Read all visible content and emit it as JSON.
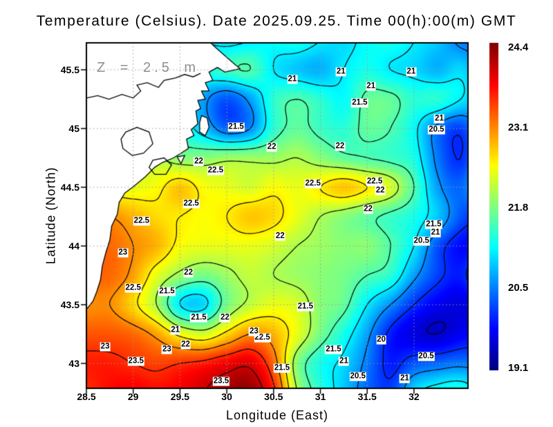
{
  "title": "Temperature (Celsius). Date 2025.09.25. Time 00(h):00(m) GMT",
  "annotation": "Z = 2.5 m",
  "axes": {
    "xlabel": "Longitude (East)",
    "ylabel": "Latitude (North)",
    "x_ticks": [
      {
        "label": "28.5",
        "value": 28.5
      },
      {
        "label": "29",
        "value": 29
      },
      {
        "label": "29.5",
        "value": 29.5
      },
      {
        "label": "30",
        "value": 30
      },
      {
        "label": "30.5",
        "value": 30.5
      },
      {
        "label": "31",
        "value": 31
      },
      {
        "label": "31.5",
        "value": 31.5
      },
      {
        "label": "32",
        "value": 32
      }
    ],
    "y_ticks": [
      {
        "label": "43",
        "value": 43
      },
      {
        "label": "43.5",
        "value": 43.5
      },
      {
        "label": "44",
        "value": 44
      },
      {
        "label": "44.5",
        "value": 44.5
      },
      {
        "label": "45",
        "value": 45
      },
      {
        "label": "45.5",
        "value": 45.5
      }
    ]
  },
  "colorbar": {
    "colormap": "jet",
    "min": 19.1,
    "max": 24.4,
    "tick_labels": [
      "24.4",
      "23.1",
      "21.8",
      "20.5",
      "19.1"
    ]
  },
  "chart_data": {
    "type": "heatmap",
    "title": "Temperature (Celsius). Date 2025.09.25. Time 00(h):00(m) GMT",
    "xlabel": "Longitude (East)",
    "ylabel": "Latitude (North)",
    "xlim": [
      28.5,
      32.58
    ],
    "ylim": [
      42.79,
      45.73
    ],
    "depth_label": "Z = 2.5 m",
    "colormap": "jet",
    "value_range": [
      19.1,
      24.4
    ],
    "contour_interval": 0.5,
    "contour_levels": [
      19.5,
      20,
      20.5,
      21,
      21.5,
      22,
      22.5,
      23,
      23.5,
      24
    ],
    "grid": {
      "lon_start": 28.5,
      "lon_step": 0.25,
      "lat_start": 45.75,
      "lat_step": -0.25,
      "temperature_c": [
        [
          21.0,
          21.0,
          21.0,
          21.0,
          21.0,
          21.0,
          20.9,
          21.0,
          21.1,
          21.2,
          21.0,
          20.9,
          21.1,
          21.2,
          21.0,
          20.8,
          20.4,
          20.3
        ],
        [
          21.0,
          21.0,
          21.0,
          21.0,
          21.0,
          21.2,
          21.4,
          21.5,
          21.0,
          20.8,
          20.7,
          21.0,
          21.2,
          21.0,
          20.9,
          20.7,
          20.9,
          20.5
        ],
        [
          21.0,
          21.0,
          21.0,
          21.0,
          21.0,
          20.6,
          20.2,
          20.6,
          21.3,
          21.5,
          21.3,
          21.1,
          21.6,
          21.6,
          21.3,
          21.3,
          21.0,
          20.7
        ],
        [
          21.0,
          21.0,
          21.0,
          21.0,
          21.2,
          20.8,
          20.3,
          20.5,
          21.3,
          21.6,
          21.4,
          21.3,
          21.6,
          21.5,
          21.1,
          20.4,
          20.1,
          20.8
        ],
        [
          22.0,
          22.0,
          22.0,
          22.0,
          21.8,
          21.8,
          21.9,
          21.9,
          21.9,
          22.0,
          21.8,
          21.6,
          21.5,
          21.4,
          21.2,
          20.4,
          20.0,
          20.8
        ],
        [
          22.3,
          22.3,
          22.3,
          22.4,
          22.7,
          22.4,
          22.3,
          22.2,
          22.4,
          22.3,
          22.5,
          22.7,
          22.5,
          22.2,
          21.5,
          20.6,
          20.3,
          21.0
        ],
        [
          23.0,
          23.0,
          22.8,
          22.6,
          22.5,
          22.4,
          22.5,
          22.7,
          22.6,
          22.3,
          22.0,
          21.8,
          21.6,
          21.4,
          21.2,
          20.8,
          20.2,
          20.0
        ],
        [
          23.2,
          23.2,
          23.0,
          22.8,
          22.4,
          22.3,
          22.3,
          22.3,
          22.2,
          22.0,
          21.9,
          21.8,
          21.8,
          21.5,
          21.0,
          20.2,
          19.8,
          19.9
        ],
        [
          23.2,
          23.2,
          22.9,
          22.3,
          21.9,
          21.7,
          21.9,
          22.1,
          22.0,
          21.9,
          21.8,
          21.7,
          21.5,
          21.3,
          20.6,
          20.1,
          19.9,
          20.5
        ],
        [
          23.0,
          23.0,
          22.6,
          22.0,
          21.0,
          20.9,
          21.7,
          22.1,
          22.3,
          22.2,
          21.8,
          21.6,
          21.0,
          20.5,
          20.0,
          19.7,
          19.6,
          19.9
        ],
        [
          23.3,
          23.3,
          23.2,
          22.9,
          22.4,
          22.2,
          22.6,
          23.0,
          22.8,
          22.3,
          21.7,
          21.2,
          20.6,
          19.9,
          19.6,
          19.5,
          19.7,
          19.9
        ],
        [
          23.6,
          23.6,
          23.5,
          23.4,
          23.5,
          23.6,
          23.8,
          23.9,
          23.2,
          21.8,
          21.2,
          20.9,
          20.4,
          19.9,
          20.2,
          20.3,
          20.4,
          20.3
        ],
        [
          23.5,
          23.7,
          23.8,
          23.7,
          23.8,
          24.0,
          24.2,
          24.3,
          23.6,
          22.0,
          21.3,
          20.8,
          20.3,
          20.1,
          20.9,
          21.2,
          21.3,
          20.9
        ]
      ]
    },
    "contour_labels": [
      {
        "v": "21",
        "lon": 30.7,
        "lat": 45.42
      },
      {
        "v": "21",
        "lon": 31.22,
        "lat": 45.48
      },
      {
        "v": "21",
        "lon": 31.97,
        "lat": 45.48
      },
      {
        "v": "21",
        "lon": 31.54,
        "lat": 45.36
      },
      {
        "v": "21.5",
        "lon": 31.42,
        "lat": 45.22
      },
      {
        "v": "21.5",
        "lon": 30.1,
        "lat": 45.01
      },
      {
        "v": "21",
        "lon": 32.27,
        "lat": 45.08
      },
      {
        "v": "20.5",
        "lon": 32.24,
        "lat": 44.99
      },
      {
        "v": "22",
        "lon": 29.7,
        "lat": 44.72
      },
      {
        "v": "22.5",
        "lon": 29.88,
        "lat": 44.64
      },
      {
        "v": "22",
        "lon": 30.48,
        "lat": 44.84
      },
      {
        "v": "22",
        "lon": 31.21,
        "lat": 44.85
      },
      {
        "v": "22.5",
        "lon": 30.92,
        "lat": 44.53
      },
      {
        "v": "22.5",
        "lon": 31.58,
        "lat": 44.55
      },
      {
        "v": "22",
        "lon": 31.64,
        "lat": 44.47
      },
      {
        "v": "22",
        "lon": 31.51,
        "lat": 44.31
      },
      {
        "v": "22.5",
        "lon": 29.62,
        "lat": 44.36
      },
      {
        "v": "22.5",
        "lon": 29.09,
        "lat": 44.21
      },
      {
        "v": "23",
        "lon": 28.89,
        "lat": 43.94
      },
      {
        "v": "22",
        "lon": 29.59,
        "lat": 43.77
      },
      {
        "v": "22",
        "lon": 30.57,
        "lat": 44.08
      },
      {
        "v": "22.5",
        "lon": 29.0,
        "lat": 43.64
      },
      {
        "v": "21.5",
        "lon": 29.36,
        "lat": 43.61
      },
      {
        "v": "21.5",
        "lon": 29.7,
        "lat": 43.39
      },
      {
        "v": "22",
        "lon": 29.98,
        "lat": 43.39
      },
      {
        "v": "21",
        "lon": 29.45,
        "lat": 43.28
      },
      {
        "v": "22.5",
        "lon": 30.38,
        "lat": 43.22
      },
      {
        "v": "23",
        "lon": 30.29,
        "lat": 43.27
      },
      {
        "v": "23",
        "lon": 28.7,
        "lat": 43.14
      },
      {
        "v": "23.5",
        "lon": 29.03,
        "lat": 43.02
      },
      {
        "v": "23",
        "lon": 29.36,
        "lat": 43.12
      },
      {
        "v": "22",
        "lon": 29.56,
        "lat": 43.16
      },
      {
        "v": "23.5",
        "lon": 29.94,
        "lat": 42.85
      },
      {
        "v": "21.5",
        "lon": 30.59,
        "lat": 42.96
      },
      {
        "v": "21.5",
        "lon": 30.84,
        "lat": 43.48
      },
      {
        "v": "21.5",
        "lon": 31.14,
        "lat": 43.12
      },
      {
        "v": "21",
        "lon": 31.25,
        "lat": 43.02
      },
      {
        "v": "20.5",
        "lon": 31.4,
        "lat": 42.89
      },
      {
        "v": "20",
        "lon": 31.65,
        "lat": 43.2
      },
      {
        "v": "20.5",
        "lon": 32.13,
        "lat": 43.06
      },
      {
        "v": "21",
        "lon": 31.9,
        "lat": 42.87
      },
      {
        "v": "21.5",
        "lon": 32.21,
        "lat": 44.18
      },
      {
        "v": "21",
        "lon": 32.23,
        "lat": 44.11
      },
      {
        "v": "20.5",
        "lon": 32.08,
        "lat": 44.04
      }
    ],
    "land": {
      "fill": "#ffffff",
      "coast_color": "#000000",
      "main_polygon": [
        [
          28.3,
          45.95
        ],
        [
          29.8,
          45.95
        ],
        [
          29.8,
          45.75
        ],
        [
          29.88,
          45.69
        ],
        [
          30.05,
          45.57
        ],
        [
          30.14,
          45.51
        ],
        [
          29.98,
          45.48
        ],
        [
          29.9,
          45.52
        ],
        [
          29.81,
          45.48
        ],
        [
          29.85,
          45.41
        ],
        [
          29.77,
          45.39
        ],
        [
          29.81,
          45.32
        ],
        [
          29.73,
          45.32
        ],
        [
          29.77,
          45.25
        ],
        [
          29.69,
          45.24
        ],
        [
          29.72,
          45.17
        ],
        [
          29.67,
          45.15
        ],
        [
          29.69,
          45.04
        ],
        [
          29.62,
          44.99
        ],
        [
          29.65,
          44.94
        ],
        [
          29.57,
          44.91
        ],
        [
          29.59,
          44.83
        ],
        [
          29.51,
          44.79
        ],
        [
          29.43,
          44.75
        ],
        [
          29.31,
          44.71
        ],
        [
          29.23,
          44.67
        ],
        [
          29.13,
          44.59
        ],
        [
          29.01,
          44.51
        ],
        [
          28.91,
          44.45
        ],
        [
          28.85,
          44.37
        ],
        [
          28.83,
          44.27
        ],
        [
          28.77,
          44.17
        ],
        [
          28.75,
          44.05
        ],
        [
          28.71,
          43.95
        ],
        [
          28.67,
          43.83
        ],
        [
          28.65,
          43.71
        ],
        [
          28.61,
          43.61
        ],
        [
          28.57,
          43.53
        ],
        [
          28.51,
          43.47
        ],
        [
          28.3,
          43.4
        ]
      ],
      "river_line": [
        [
          28.3,
          45.25
        ],
        [
          28.5,
          45.26
        ],
        [
          28.62,
          45.28
        ],
        [
          28.74,
          45.25
        ],
        [
          28.88,
          45.29
        ],
        [
          29.0,
          45.26
        ],
        [
          29.08,
          45.32
        ],
        [
          29.04,
          45.37
        ],
        [
          29.15,
          45.39
        ],
        [
          29.27,
          45.35
        ],
        [
          29.33,
          45.41
        ],
        [
          29.45,
          45.43
        ],
        [
          29.55,
          45.46
        ],
        [
          29.64,
          45.44
        ],
        [
          29.72,
          45.47
        ]
      ],
      "lakes": [
        [
          [
            28.92,
            44.97
          ],
          [
            29.04,
            45.01
          ],
          [
            29.17,
            44.97
          ],
          [
            29.21,
            44.87
          ],
          [
            29.11,
            44.79
          ],
          [
            28.99,
            44.77
          ],
          [
            28.89,
            44.83
          ],
          [
            28.87,
            44.91
          ]
        ],
        [
          [
            29.21,
            44.73
          ],
          [
            29.33,
            44.75
          ],
          [
            29.41,
            44.69
          ],
          [
            29.35,
            44.61
          ],
          [
            29.23,
            44.61
          ],
          [
            29.17,
            44.67
          ]
        ]
      ],
      "islets": [
        [
          [
            29.73,
            45.11
          ],
          [
            29.79,
            45.09
          ],
          [
            29.81,
            45.01
          ],
          [
            29.77,
            44.94
          ],
          [
            29.71,
            44.97
          ],
          [
            29.71,
            45.05
          ]
        ],
        [
          [
            29.47,
            44.76
          ],
          [
            29.55,
            44.77
          ],
          [
            29.51,
            44.7
          ]
        ]
      ]
    },
    "grid_lines": {
      "style": "dotted",
      "color": "#9a9a9a"
    }
  }
}
